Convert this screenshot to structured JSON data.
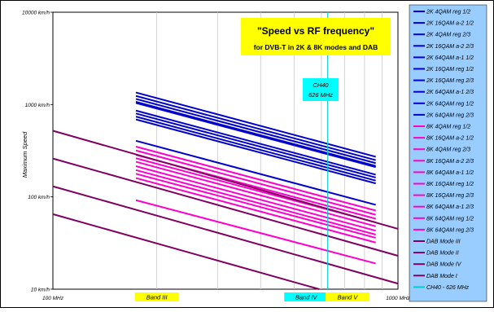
{
  "chart_data": {
    "type": "line",
    "title": "\"Speed vs RF frequency\"",
    "subtitle": "for DVB-T in 2K & 8K modes and DAB",
    "ylabel": "Maximum Speed",
    "xlabel": "",
    "x_scale": "log",
    "y_scale": "log",
    "xlim": [
      100,
      1000
    ],
    "ylim": [
      10,
      10000
    ],
    "x_ticks": [
      {
        "value": 100,
        "label": "100 MHz"
      },
      {
        "value": 1000,
        "label": "1000 MHz"
      }
    ],
    "y_ticks": [
      {
        "value": 10,
        "label": "10 km/h"
      },
      {
        "value": 100,
        "label": "100 km/h"
      },
      {
        "value": 1000,
        "label": "1000 km/h"
      },
      {
        "value": 10000,
        "label": "10000 km/h"
      }
    ],
    "grid": "vertical",
    "legend_position": "right",
    "annotation": {
      "label_line1": "CH40",
      "label_line2": "626 MHz",
      "x": 626
    },
    "bands": [
      {
        "label": "Band III",
        "x_center": 200
      },
      {
        "label": "Band IV",
        "x_center": 542
      },
      {
        "label": "Band V",
        "x_center": 714
      }
    ],
    "series": [
      {
        "name": "2K 4QAM reg 1/2",
        "color": "#0000cc",
        "x": [
          174,
          862
        ],
        "y": [
          1350,
          272
        ]
      },
      {
        "name": "2K 16QAM a-2 1/2",
        "color": "#0000cc",
        "x": [
          174,
          862
        ],
        "y": [
          1240,
          250
        ]
      },
      {
        "name": "2K 4QAM reg 2/3",
        "color": "#0000cc",
        "x": [
          174,
          862
        ],
        "y": [
          1150,
          232
        ]
      },
      {
        "name": "2K 16QAM a-2 2/3",
        "color": "#0000cc",
        "x": [
          174,
          862
        ],
        "y": [
          1070,
          216
        ]
      },
      {
        "name": "2K 64QAM a-1 1/2",
        "color": "#0000cc",
        "x": [
          174,
          862
        ],
        "y": [
          1040,
          210
        ]
      },
      {
        "name": "2K 16QAM reg 1/2",
        "color": "#0000cc",
        "x": [
          174,
          862
        ],
        "y": [
          860,
          174
        ]
      },
      {
        "name": "2K 16QAM reg 2/3",
        "color": "#0000cc",
        "x": [
          174,
          862
        ],
        "y": [
          800,
          162
        ]
      },
      {
        "name": "2K 64QAM a-1 2/3",
        "color": "#0000cc",
        "x": [
          174,
          862
        ],
        "y": [
          740,
          150
        ]
      },
      {
        "name": "2K 64QAM reg 1/2",
        "color": "#0000cc",
        "x": [
          174,
          862
        ],
        "y": [
          690,
          140
        ]
      },
      {
        "name": "2K 64QAM reg 2/3",
        "color": "#0000cc",
        "x": [
          174,
          862
        ],
        "y": [
          405,
          82
        ]
      },
      {
        "name": "8K 4QAM reg 1/2",
        "color": "#ff00cc",
        "x": [
          174,
          862
        ],
        "y": [
          350,
          71
        ]
      },
      {
        "name": "8K 16QAM a-2 1/2",
        "color": "#ff00cc",
        "x": [
          174,
          862
        ],
        "y": [
          318,
          64
        ]
      },
      {
        "name": "8K 4QAM reg 2/3",
        "color": "#ff00cc",
        "x": [
          174,
          862
        ],
        "y": [
          285,
          58
        ]
      },
      {
        "name": "8K 16QAM a-2 2/3",
        "color": "#ff00cc",
        "x": [
          174,
          862
        ],
        "y": [
          262,
          53
        ]
      },
      {
        "name": "8K 64QAM a-1 1/2",
        "color": "#ff00cc",
        "x": [
          174,
          862
        ],
        "y": [
          240,
          48
        ]
      },
      {
        "name": "8K 16QAM reg 1/2",
        "color": "#ff00cc",
        "x": [
          174,
          862
        ],
        "y": [
          215,
          43
        ]
      },
      {
        "name": "8K 16QAM reg 2/3",
        "color": "#ff00cc",
        "x": [
          174,
          862
        ],
        "y": [
          195,
          39
        ]
      },
      {
        "name": "8K 64QAM a-1 2/3",
        "color": "#ff00cc",
        "x": [
          174,
          862
        ],
        "y": [
          178,
          36
        ]
      },
      {
        "name": "8K 64QAM reg 1/2",
        "color": "#ff00cc",
        "x": [
          174,
          862
        ],
        "y": [
          160,
          32
        ]
      },
      {
        "name": "8K 64QAM reg 2/3",
        "color": "#ff00cc",
        "x": [
          174,
          862
        ],
        "y": [
          92,
          19
        ]
      },
      {
        "name": "DAB Mode III",
        "color": "#800060",
        "x": [
          100,
          1000
        ],
        "y": [
          520,
          45
        ]
      },
      {
        "name": "DAB Mode II",
        "color": "#800060",
        "x": [
          100,
          1000
        ],
        "y": [
          260,
          23
        ]
      },
      {
        "name": "DAB Mode IV",
        "color": "#800060",
        "x": [
          100,
          1000
        ],
        "y": [
          130,
          11.5
        ]
      },
      {
        "name": "DAB Mode I",
        "color": "#800060",
        "x": [
          100,
          1000
        ],
        "y": [
          65,
          5.75
        ]
      },
      {
        "name": "CH40 - 626 MHz",
        "color": "#00cccc",
        "x": [
          626,
          626
        ],
        "y": [
          10,
          10000
        ]
      }
    ]
  },
  "colors": {
    "title_box": "#ffff00",
    "band_iii": "#ffff00",
    "band_iv": "#00ffff",
    "band_v": "#ffff00",
    "legend_bg": "#99ccff",
    "annotation_box": "#00ffff"
  }
}
